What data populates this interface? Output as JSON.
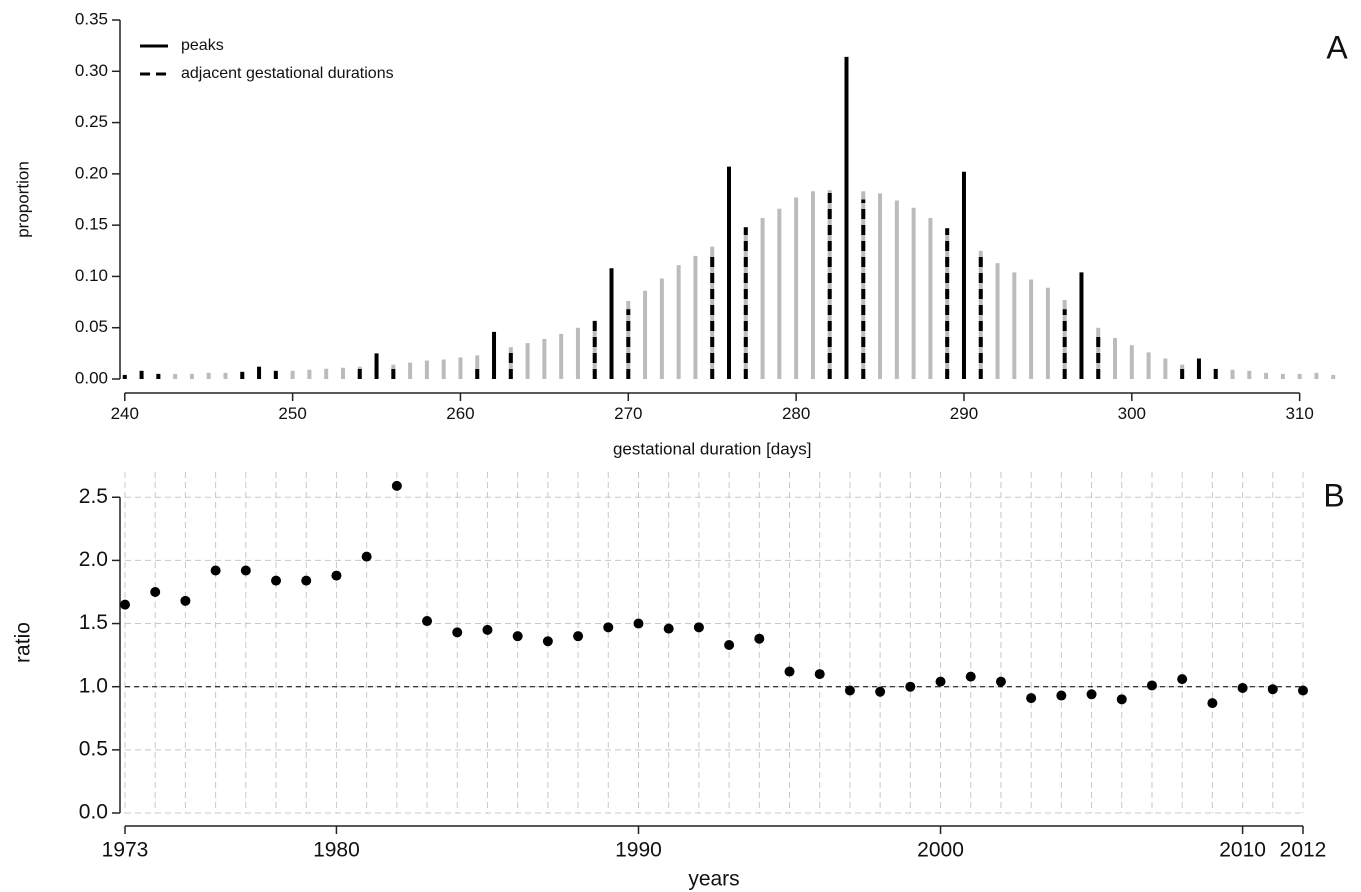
{
  "chart_data": [
    {
      "type": "bar",
      "panel_label": "A",
      "xlabel": "gestational duration [days]",
      "ylabel": "proportion",
      "x": [
        240,
        241,
        242,
        243,
        244,
        245,
        246,
        247,
        248,
        249,
        250,
        251,
        252,
        253,
        254,
        255,
        256,
        257,
        258,
        259,
        260,
        261,
        262,
        263,
        264,
        265,
        266,
        267,
        268,
        269,
        270,
        271,
        272,
        273,
        274,
        275,
        276,
        277,
        278,
        279,
        280,
        281,
        282,
        283,
        284,
        285,
        286,
        287,
        288,
        289,
        290,
        291,
        292,
        293,
        294,
        295,
        296,
        297,
        298,
        299,
        300,
        301,
        302,
        303,
        304,
        305,
        306,
        307,
        308,
        309,
        310,
        311,
        312
      ],
      "xlim": [
        239,
        313
      ],
      "xticks": [
        240,
        250,
        260,
        270,
        280,
        290,
        300,
        310
      ],
      "ylim": [
        0,
        0.35
      ],
      "yticks": [
        {
          "value": 0,
          "label": "0.00"
        },
        0.05,
        {
          "value": 0.1,
          "label": "0.10"
        },
        0.15,
        {
          "value": 0.2,
          "label": "0.20"
        },
        0.25,
        {
          "value": 0.3,
          "label": "0.30"
        },
        0.35
      ],
      "legend": "top-left",
      "series": [
        {
          "color": "#bbbbbb",
          "style": "solid",
          "values": [
            0.003,
            0.004,
            0.004,
            0.005,
            0.005,
            0.006,
            0.006,
            0.006,
            0.007,
            0.007,
            0.008,
            0.009,
            0.01,
            0.011,
            0.012,
            0.013,
            0.014,
            0.016,
            0.018,
            0.019,
            0.021,
            0.023,
            0.026,
            0.031,
            0.035,
            0.039,
            0.044,
            0.05,
            0.057,
            0.065,
            0.076,
            0.086,
            0.098,
            0.111,
            0.12,
            0.129,
            0.138,
            0.148,
            0.157,
            0.166,
            0.177,
            0.183,
            0.184,
            0.186,
            0.183,
            0.181,
            0.174,
            0.167,
            0.157,
            0.147,
            0.136,
            0.125,
            0.113,
            0.104,
            0.097,
            0.089,
            0.077,
            0.06,
            0.05,
            0.04,
            0.033,
            0.026,
            0.02,
            0.014,
            0.012,
            0.01,
            0.009,
            0.008,
            0.006,
            0.005,
            0.005,
            0.006,
            0.004
          ]
        },
        {
          "name": "peaks",
          "color": "#000000",
          "style": "solid",
          "values": [
            null,
            0.008,
            null,
            null,
            null,
            null,
            null,
            null,
            0.012,
            null,
            null,
            null,
            null,
            null,
            null,
            0.025,
            null,
            null,
            null,
            null,
            null,
            null,
            0.046,
            null,
            null,
            null,
            null,
            null,
            null,
            0.108,
            null,
            null,
            null,
            null,
            null,
            null,
            0.207,
            null,
            null,
            null,
            null,
            null,
            null,
            0.314,
            null,
            null,
            null,
            null,
            null,
            null,
            0.202,
            null,
            null,
            null,
            null,
            null,
            null,
            0.104,
            null,
            null,
            null,
            null,
            null,
            null,
            0.02,
            null,
            null,
            null,
            null,
            null,
            null,
            null,
            null
          ]
        },
        {
          "name": "adjacent gestational durations",
          "color": "#000000",
          "style": "dashed",
          "values": [
            0.004,
            null,
            0.005,
            null,
            null,
            null,
            null,
            0.007,
            null,
            0.008,
            null,
            null,
            null,
            null,
            0.012,
            null,
            0.014,
            null,
            null,
            null,
            null,
            0.014,
            null,
            0.03,
            null,
            null,
            null,
            null,
            0.057,
            null,
            0.068,
            null,
            null,
            null,
            null,
            0.121,
            null,
            0.148,
            null,
            null,
            null,
            null,
            0.186,
            null,
            0.175,
            null,
            null,
            null,
            null,
            0.147,
            null,
            0.121,
            null,
            null,
            null,
            null,
            0.068,
            null,
            0.041,
            null,
            null,
            null,
            null,
            0.015,
            null,
            0.01,
            null,
            null,
            null,
            null,
            null,
            null,
            null
          ]
        }
      ]
    },
    {
      "type": "scatter",
      "panel_label": "B",
      "xlabel": "years",
      "ylabel": "ratio",
      "x": [
        1973,
        1974,
        1975,
        1976,
        1977,
        1978,
        1979,
        1980,
        1981,
        1982,
        1983,
        1984,
        1985,
        1986,
        1987,
        1988,
        1989,
        1990,
        1991,
        1992,
        1993,
        1994,
        1995,
        1996,
        1997,
        1998,
        1999,
        2000,
        2001,
        2002,
        2003,
        2004,
        2005,
        2006,
        2007,
        2008,
        2009,
        2010,
        2011,
        2012
      ],
      "values": [
        1.65,
        1.75,
        1.68,
        1.92,
        1.92,
        1.84,
        1.84,
        1.88,
        2.03,
        2.59,
        1.52,
        1.43,
        1.45,
        1.4,
        1.36,
        1.4,
        1.47,
        1.5,
        1.46,
        1.47,
        1.33,
        1.38,
        1.12,
        1.1,
        0.97,
        0.96,
        1.0,
        1.04,
        1.08,
        1.04,
        0.91,
        0.93,
        0.94,
        0.9,
        1.01,
        1.06,
        0.87,
        0.99,
        0.98,
        0.97
      ],
      "color": "#000000",
      "xlim": [
        1973,
        2012
      ],
      "xticks": [
        1973,
        1980,
        1990,
        2000,
        2010,
        2012
      ],
      "ylim": [
        0,
        2.7
      ],
      "yticks": [
        {
          "value": 0,
          "label": "0.0"
        },
        0.5,
        {
          "value": 1,
          "label": "1.0"
        },
        1.5,
        {
          "value": 2,
          "label": "2.0"
        },
        2.5
      ],
      "grid": true,
      "reference_line": 1
    }
  ]
}
